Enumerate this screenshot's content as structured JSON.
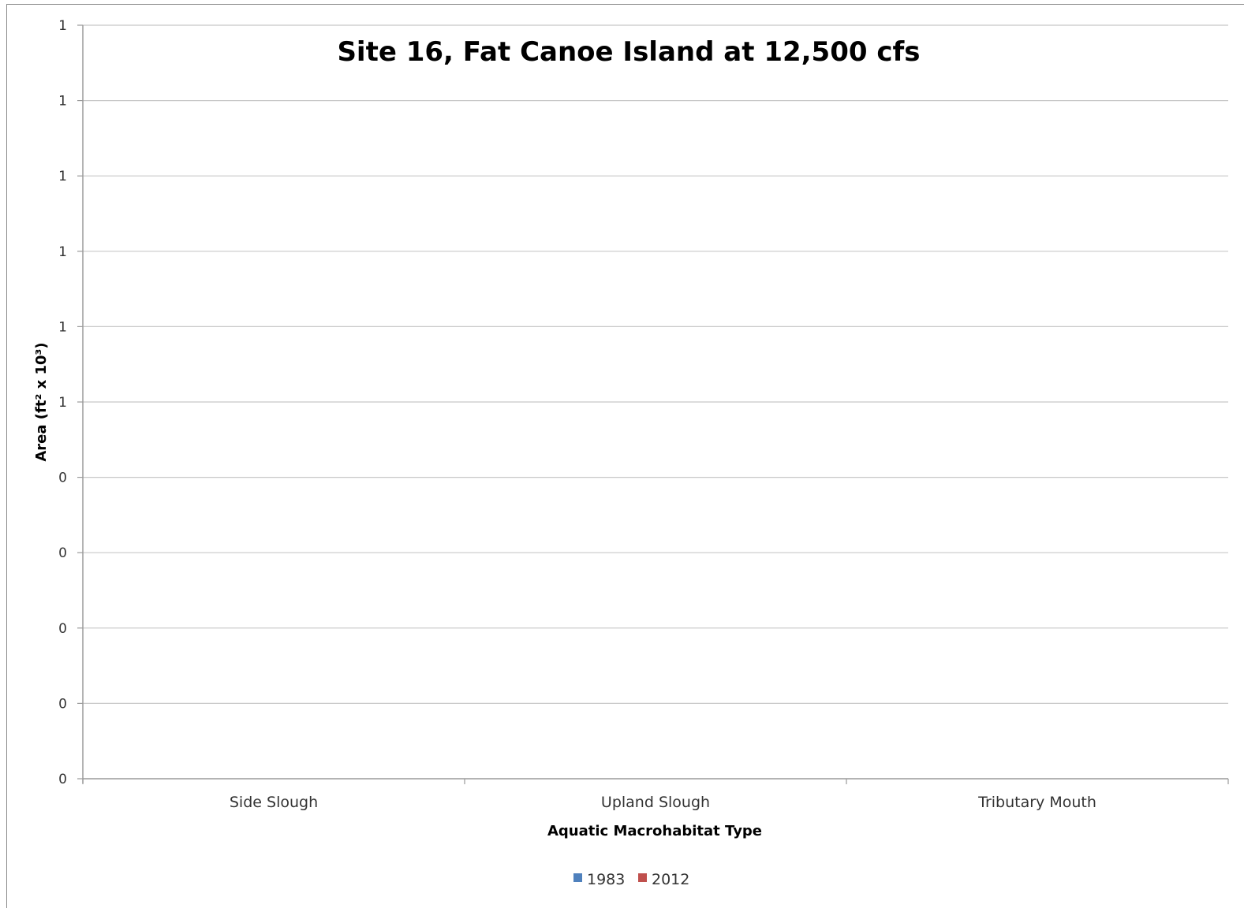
{
  "chart_data": {
    "type": "bar",
    "title": "Site 16, Fat Canoe Island at 12,500 cfs",
    "xlabel": "Aquatic Macrohabitat Type",
    "ylabel": "Area (ft² x 10³)",
    "categories": [
      "Side Slough",
      "Upland Slough",
      "Tributary Mouth"
    ],
    "series": [
      {
        "name": "1983",
        "values": [
          0,
          0,
          0
        ],
        "color": "#4f81bd"
      },
      {
        "name": "2012",
        "values": [
          0,
          0,
          0
        ],
        "color": "#c0504d"
      }
    ],
    "y_tick_labels": [
      "0",
      "0",
      "0",
      "0",
      "0",
      "1",
      "1",
      "1",
      "1",
      "1",
      "1"
    ],
    "ylim": [
      0,
      1
    ],
    "grid": true,
    "legend": "bottom"
  }
}
